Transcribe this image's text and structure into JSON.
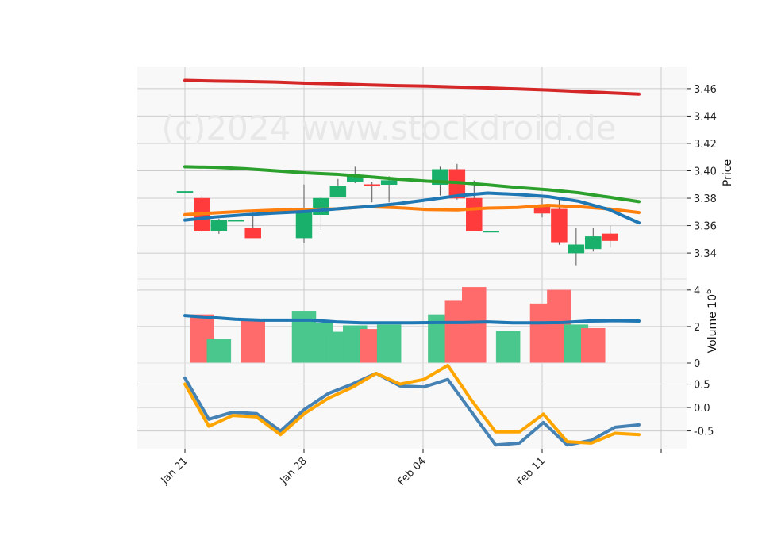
{
  "chart_data": {
    "type": "candlestick",
    "watermark": "(c)2024 www.stockdroid.de",
    "x_tick_labels": [
      "Jan 21",
      "Jan 28",
      "Feb 04",
      "Feb 11"
    ],
    "dates": [
      "2024-01-21",
      "2024-01-22",
      "2024-01-23",
      "2024-01-24",
      "2024-01-25",
      "2024-01-26",
      "2024-01-27",
      "2024-01-28",
      "2024-01-29",
      "2024-01-30",
      "2024-01-31",
      "2024-02-01",
      "2024-02-02",
      "2024-02-03",
      "2024-02-04",
      "2024-02-05",
      "2024-02-06",
      "2024-02-07",
      "2024-02-08",
      "2024-02-09",
      "2024-02-10",
      "2024-02-11",
      "2024-02-12",
      "2024-02-13",
      "2024-02-14",
      "2024-02-15",
      "2024-02-16",
      "2024-02-17",
      "2024-02-18",
      "2024-02-19",
      "2024-02-20"
    ],
    "colors": {
      "up": "#18b06a",
      "down": "#ff3b3b",
      "sma_long": "#d62728",
      "sma_mid": "#2ca02c",
      "sma_short": "#1f77b4",
      "ema": "#ff7f0e",
      "osc_a": "#4682b4",
      "osc_b": "#ffa500"
    },
    "price_panel": {
      "ylabel": "Price",
      "ylim": [
        3.325,
        3.475
      ],
      "yticks": [
        "3.34",
        "3.36",
        "3.38",
        "3.40",
        "3.42",
        "3.44",
        "3.46"
      ],
      "candles": [
        {
          "date": "2024-01-21",
          "open": 3.385,
          "high": 3.385,
          "low": 3.385,
          "close": 3.385
        },
        {
          "date": "2024-01-22",
          "open": 3.38,
          "high": 3.382,
          "low": 3.355,
          "close": 3.356
        },
        {
          "date": "2024-01-23",
          "open": 3.356,
          "high": 3.365,
          "low": 3.354,
          "close": 3.364
        },
        {
          "date": "2024-01-24",
          "open": 3.364,
          "high": 3.364,
          "low": 3.364,
          "close": 3.364
        },
        {
          "date": "2024-01-25",
          "open": 3.358,
          "high": 3.37,
          "low": 3.351,
          "close": 3.351
        },
        {
          "date": "2024-01-28",
          "open": 3.351,
          "high": 3.39,
          "low": 3.347,
          "close": 3.37
        },
        {
          "date": "2024-01-29",
          "open": 3.368,
          "high": 3.381,
          "low": 3.357,
          "close": 3.38
        },
        {
          "date": "2024-01-30",
          "open": 3.381,
          "high": 3.394,
          "low": 3.381,
          "close": 3.389
        },
        {
          "date": "2024-01-31",
          "open": 3.392,
          "high": 3.403,
          "low": 3.391,
          "close": 3.397
        },
        {
          "date": "2024-02-01",
          "open": 3.39,
          "high": 3.392,
          "low": 3.377,
          "close": 3.389
        },
        {
          "date": "2024-02-02",
          "open": 3.39,
          "high": 3.396,
          "low": 3.377,
          "close": 3.393
        },
        {
          "date": "2024-02-05",
          "open": 3.39,
          "high": 3.403,
          "low": 3.382,
          "close": 3.401
        },
        {
          "date": "2024-02-06",
          "open": 3.401,
          "high": 3.405,
          "low": 3.379,
          "close": 3.38
        },
        {
          "date": "2024-02-07",
          "open": 3.38,
          "high": 3.393,
          "low": 3.356,
          "close": 3.356
        },
        {
          "date": "2024-02-08",
          "open": 3.356,
          "high": 3.356,
          "low": 3.356,
          "close": 3.356
        },
        {
          "date": "2024-02-11",
          "open": 3.375,
          "high": 3.38,
          "low": 3.366,
          "close": 3.369
        },
        {
          "date": "2024-02-12",
          "open": 3.372,
          "high": 3.381,
          "low": 3.346,
          "close": 3.348
        },
        {
          "date": "2024-02-13",
          "open": 3.34,
          "high": 3.358,
          "low": 3.331,
          "close": 3.346
        },
        {
          "date": "2024-02-14",
          "open": 3.343,
          "high": 3.358,
          "low": 3.341,
          "close": 3.352
        },
        {
          "date": "2024-02-15",
          "open": 3.354,
          "high": 3.36,
          "low": 3.344,
          "close": 3.349
        }
      ],
      "series": [
        {
          "key": "sma_long",
          "values": [
            3.466,
            3.4655,
            3.4652,
            3.4648,
            3.464,
            3.4635,
            3.4628,
            3.4622,
            3.4618,
            3.4612,
            3.4605,
            3.4598,
            3.459,
            3.458,
            3.457,
            3.456
          ]
        },
        {
          "key": "sma_mid",
          "values": [
            3.403,
            3.4025,
            3.4015,
            3.4,
            3.3985,
            3.3975,
            3.3958,
            3.394,
            3.3925,
            3.3915,
            3.3898,
            3.3878,
            3.3862,
            3.384,
            3.3808,
            3.3775
          ]
        },
        {
          "key": "ema",
          "values": [
            3.368,
            3.3693,
            3.3705,
            3.3713,
            3.3718,
            3.3722,
            3.3738,
            3.3731,
            3.3718,
            3.3715,
            3.3728,
            3.3732,
            3.3748,
            3.3738,
            3.3722,
            3.3695
          ]
        },
        {
          "key": "sma_short",
          "values": [
            3.364,
            3.3663,
            3.3679,
            3.3692,
            3.3703,
            3.3722,
            3.3738,
            3.3759,
            3.3788,
            3.3818,
            3.3838,
            3.3828,
            3.3812,
            3.3778,
            3.3718,
            3.362
          ]
        }
      ]
    },
    "volume_panel": {
      "ylabel": "Volume  10^6",
      "ylim": [
        0,
        4.6
      ],
      "yticks": [
        "0",
        "2",
        "4"
      ],
      "bars": [
        {
          "date": "2024-01-22",
          "value": 2.65,
          "dir": "down"
        },
        {
          "date": "2024-01-23",
          "value": 1.3,
          "dir": "up"
        },
        {
          "date": "2024-01-25",
          "value": 2.3,
          "dir": "down"
        },
        {
          "date": "2024-01-28",
          "value": 2.85,
          "dir": "up"
        },
        {
          "date": "2024-01-29",
          "value": 2.2,
          "dir": "up"
        },
        {
          "date": "2024-01-30",
          "value": 1.7,
          "dir": "up"
        },
        {
          "date": "2024-01-31",
          "value": 2.05,
          "dir": "up"
        },
        {
          "date": "2024-02-01",
          "value": 1.85,
          "dir": "down"
        },
        {
          "date": "2024-02-02",
          "value": 2.1,
          "dir": "up"
        },
        {
          "date": "2024-02-05",
          "value": 2.65,
          "dir": "up"
        },
        {
          "date": "2024-02-06",
          "value": 3.4,
          "dir": "down"
        },
        {
          "date": "2024-02-07",
          "value": 4.15,
          "dir": "down"
        },
        {
          "date": "2024-02-09",
          "value": 1.75,
          "dir": "up"
        },
        {
          "date": "2024-02-11",
          "value": 3.25,
          "dir": "down"
        },
        {
          "date": "2024-02-12",
          "value": 4.0,
          "dir": "down"
        },
        {
          "date": "2024-02-13",
          "value": 2.1,
          "dir": "up"
        },
        {
          "date": "2024-02-14",
          "value": 1.9,
          "dir": "down"
        }
      ],
      "avg_values": [
        2.6,
        2.5,
        2.4,
        2.35,
        2.35,
        2.35,
        2.25,
        2.2,
        2.2,
        2.2,
        2.22,
        2.22,
        2.25,
        2.2,
        2.2,
        2.22,
        2.3,
        2.32,
        2.3
      ]
    },
    "oscillator_panel": {
      "ylim": [
        -0.88,
        0.95
      ],
      "yticks": [
        "0.5",
        "0.0",
        "-0.5"
      ],
      "series": [
        {
          "key": "osc_a",
          "values": [
            0.63,
            -0.25,
            -0.1,
            -0.13,
            -0.5,
            -0.04,
            0.3,
            0.5,
            0.73,
            0.46,
            0.44,
            0.6,
            -0.1,
            -0.8,
            -0.76,
            -0.32,
            -0.8,
            -0.7,
            -0.42,
            -0.37
          ]
        },
        {
          "key": "osc_b",
          "values": [
            0.5,
            -0.4,
            -0.17,
            -0.2,
            -0.58,
            -0.13,
            0.2,
            0.43,
            0.73,
            0.5,
            0.6,
            0.9,
            0.15,
            -0.52,
            -0.52,
            -0.14,
            -0.73,
            -0.76,
            -0.55,
            -0.58
          ]
        }
      ]
    }
  }
}
